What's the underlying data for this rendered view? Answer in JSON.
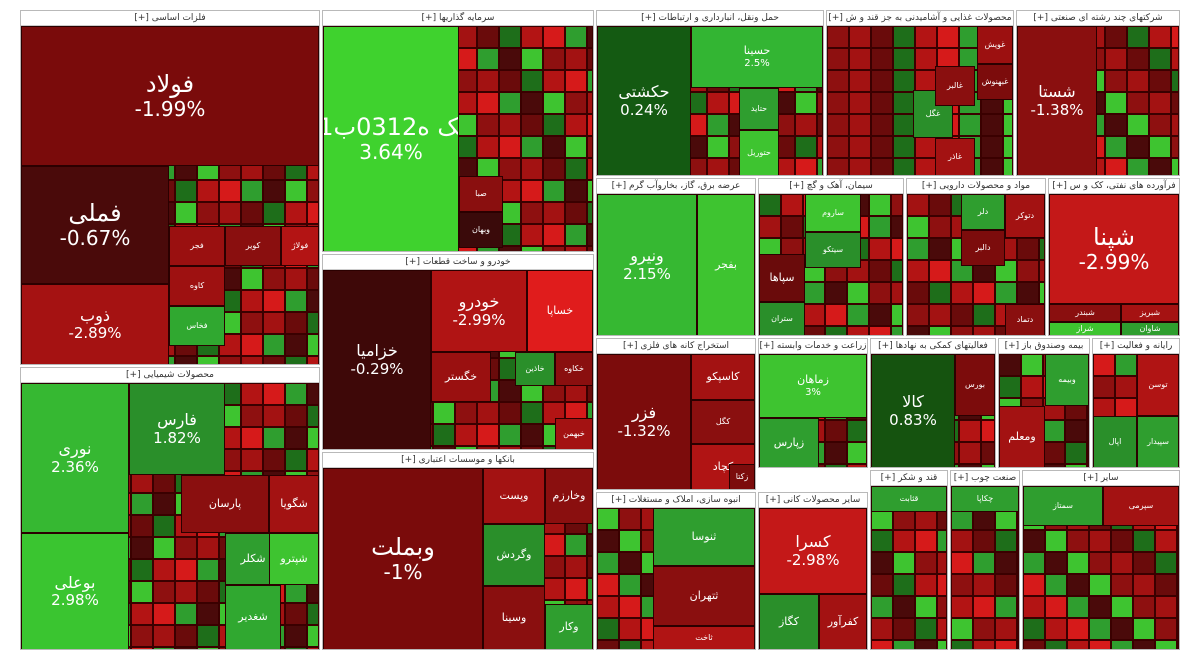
{
  "app": {
    "title": ""
  },
  "colors": {
    "dark_red": "#5a0d0d",
    "red": "#8e1010",
    "bright_red": "#d61a1a",
    "green": "#2e9e2e",
    "bright_green": "#3ed32e",
    "dark_green": "#15530f"
  },
  "chart_data": {
    "type": "treemap",
    "sectors": [
      {
        "name": "فلزات اساسی [+]",
        "tiles": [
          {
            "symbol": "فولاد",
            "change": "-1.99%",
            "color": "#7a0b0b"
          },
          {
            "symbol": "فملی",
            "change": "-0.67%",
            "color": "#4a0a0a"
          },
          {
            "symbol": "ذوب",
            "change": "-2.89%",
            "color": "#a51212"
          },
          {
            "symbol": "فولاژ",
            "change": "",
            "color": "#b31414"
          },
          {
            "symbol": "کاوه",
            "change": "",
            "color": "#9e1111"
          },
          {
            "symbol": "کویر",
            "change": "",
            "color": "#8a0f0f"
          },
          {
            "symbol": "فجر",
            "change": "",
            "color": "#9a1010"
          },
          {
            "symbol": "فخاس",
            "change": "",
            "color": "#30a830"
          }
        ]
      },
      {
        "name": "سرمایه گذاریها [+]",
        "tiles": [
          {
            "symbol": "سک ه0312ب01",
            "change": "3.64%",
            "color": "#3fd22e"
          },
          {
            "symbol": "صبا",
            "change": "",
            "color": "#8a0f0f"
          },
          {
            "symbol": "وبهان",
            "change": "",
            "color": "#3a0a0a"
          }
        ]
      },
      {
        "name": "حمل ونقل، انبارداری و ارتباطات [+]",
        "tiles": [
          {
            "symbol": "حکشتی",
            "change": "0.24%",
            "color": "#145a12"
          },
          {
            "symbol": "حسینا",
            "change": "2.5%",
            "color": "#33b533"
          },
          {
            "symbol": "حتاید",
            "change": "",
            "color": "#2f9e2f"
          },
          {
            "symbol": "حتوریل",
            "change": "",
            "color": "#3ec430"
          }
        ]
      },
      {
        "name": "محصولات غذایی و آشامیدنی به جز قند و ش [+]",
        "tiles": [
          {
            "symbol": "غویش",
            "change": "",
            "color": "#9c1010"
          },
          {
            "symbol": "غبهنوش",
            "change": "",
            "color": "#7c0c0c"
          },
          {
            "symbol": "غگل",
            "change": "",
            "color": "#2a8f2a"
          },
          {
            "symbol": "غالبر",
            "change": "",
            "color": "#8a0f0f"
          },
          {
            "symbol": "غاذر",
            "change": "",
            "color": "#a31212"
          }
        ]
      },
      {
        "name": "شرکتهای چند رشته ای صنعتی [+]",
        "tiles": [
          {
            "symbol": "شستا",
            "change": "-1.38%",
            "color": "#8a0f0f"
          }
        ]
      },
      {
        "name": "عرضه برق، گاز، بخاروآب گرم [+]",
        "tiles": [
          {
            "symbol": "ونیرو",
            "change": "2.15%",
            "color": "#36b832"
          },
          {
            "symbol": "بفجر",
            "change": "",
            "color": "#3ec430"
          }
        ]
      },
      {
        "name": "سیمان، آهک و گچ [+]",
        "tiles": [
          {
            "symbol": "ساروم",
            "change": "",
            "color": "#3ec430"
          },
          {
            "symbol": "سیتکو",
            "change": "",
            "color": "#2a8f2a"
          },
          {
            "symbol": "سپاها",
            "change": "",
            "color": "#6a0b0b"
          },
          {
            "symbol": "ستران",
            "change": "",
            "color": "#2a8f2a"
          }
        ]
      },
      {
        "name": "مواد و محصولات دارویی [+]",
        "tiles": [
          {
            "symbol": "دلر",
            "change": "",
            "color": "#2f9e2f"
          },
          {
            "symbol": "دتوکر",
            "change": "",
            "color": "#a31212"
          },
          {
            "symbol": "دالبر",
            "change": "",
            "color": "#7c0c0c"
          },
          {
            "symbol": "دتماد",
            "change": "",
            "color": "#8a0f0f"
          }
        ]
      },
      {
        "name": "فرآورده های نفتی، کک و س [+]",
        "tiles": [
          {
            "symbol": "شپنا",
            "change": "-2.99%",
            "color": "#c41818"
          },
          {
            "symbol": "شبریز",
            "change": "",
            "color": "#a51212"
          },
          {
            "symbol": "شبندر",
            "change": "",
            "color": "#8a0f0f"
          },
          {
            "symbol": "شاوان",
            "change": "",
            "color": "#2f9e2f"
          },
          {
            "symbol": "شراز",
            "change": "",
            "color": "#3ec430"
          }
        ]
      },
      {
        "name": "خودرو و ساخت قطعات [+]",
        "tiles": [
          {
            "symbol": "خزامیا",
            "change": "-0.29%",
            "color": "#3e0808"
          },
          {
            "symbol": "خودرو",
            "change": "-2.99%",
            "color": "#b01414"
          },
          {
            "symbol": "خساپا",
            "change": "",
            "color": "#e01c1c"
          },
          {
            "symbol": "خگستر",
            "change": "",
            "color": "#9a1010"
          },
          {
            "symbol": "خاذین",
            "change": "",
            "color": "#2a8f2a"
          },
          {
            "symbol": "خکاوه",
            "change": "",
            "color": "#8a0f0f"
          },
          {
            "symbol": "خبهمن",
            "change": "",
            "color": "#a31212"
          }
        ]
      },
      {
        "name": "استخراج کانه های فلزی [+]",
        "tiles": [
          {
            "symbol": "فزر",
            "change": "-1.32%",
            "color": "#7c0c0c"
          },
          {
            "symbol": "کاسپکو",
            "change": "",
            "color": "#a31212"
          },
          {
            "symbol": "کگل",
            "change": "",
            "color": "#8a0f0f"
          },
          {
            "symbol": "کچاد",
            "change": "",
            "color": "#b01414"
          },
          {
            "symbol": "زکتا",
            "change": "",
            "color": "#7c0c0c"
          }
        ]
      },
      {
        "name": "زراعت و خدمات وابسته [+]",
        "tiles": [
          {
            "symbol": "زماهان",
            "change": "3%",
            "color": "#3ec430"
          },
          {
            "symbol": "زپارس",
            "change": "",
            "color": "#2f9e2f"
          }
        ]
      },
      {
        "name": "فعالیتهای کمکی به نهادها [+]",
        "tiles": [
          {
            "symbol": "کالا",
            "change": "0.83%",
            "color": "#15530f"
          },
          {
            "symbol": "بورس",
            "change": "",
            "color": "#7c0c0c"
          }
        ]
      },
      {
        "name": "بیمه وصندوق باز [+]",
        "tiles": [
          {
            "symbol": "ومعلم",
            "change": "",
            "color": "#a31212"
          },
          {
            "symbol": "وبیمه",
            "change": "",
            "color": "#2f9e2f"
          }
        ]
      },
      {
        "name": "رایانه و فعالیت [+]",
        "tiles": [
          {
            "symbol": "توسن",
            "change": "",
            "color": "#b01414"
          },
          {
            "symbol": "سپیدار",
            "change": "",
            "color": "#2f9e2f"
          },
          {
            "symbol": "اپال",
            "change": "",
            "color": "#2a8f2a"
          }
        ]
      },
      {
        "name": "محصولات شیمیایی [+]",
        "tiles": [
          {
            "symbol": "نوری",
            "change": "2.36%",
            "color": "#36b832"
          },
          {
            "symbol": "بوعلی",
            "change": "2.98%",
            "color": "#3ac530"
          },
          {
            "symbol": "فارس",
            "change": "1.82%",
            "color": "#2a8f2a"
          },
          {
            "symbol": "پارسان",
            "change": "",
            "color": "#8a0f0f"
          },
          {
            "symbol": "شگویا",
            "change": "",
            "color": "#a31212"
          },
          {
            "symbol": "شکلر",
            "change": "",
            "color": "#2f9e2f"
          },
          {
            "symbol": "شپترو",
            "change": "",
            "color": "#3ec430"
          },
          {
            "symbol": "شغدیر",
            "change": "",
            "color": "#30a830"
          }
        ]
      },
      {
        "name": "بانکها و موسسات اعتباری [+]",
        "tiles": [
          {
            "symbol": "وبملت",
            "change": "-1%",
            "color": "#7a0b0b"
          },
          {
            "symbol": "وپست",
            "change": "",
            "color": "#a31212"
          },
          {
            "symbol": "وخارزم",
            "change": "",
            "color": "#8a0f0f"
          },
          {
            "symbol": "وکار",
            "change": "",
            "color": "#2f9e2f"
          },
          {
            "symbol": "وگردش",
            "change": "",
            "color": "#2a8f2a"
          },
          {
            "symbol": "وسینا",
            "change": "",
            "color": "#8a0f0f"
          }
        ]
      },
      {
        "name": "انبوه سازی، املاک و مستغلات [+]",
        "tiles": [
          {
            "symbol": "ثنوسا",
            "change": "",
            "color": "#2f9e2f"
          },
          {
            "symbol": "ثتهران",
            "change": "",
            "color": "#8a0f0f"
          },
          {
            "symbol": "ثاخت",
            "change": "",
            "color": "#b01414"
          }
        ]
      },
      {
        "name": "سایر محصولات کانی [+]",
        "tiles": [
          {
            "symbol": "کسرا",
            "change": "-2.98%",
            "color": "#c41818"
          },
          {
            "symbol": "کگاز",
            "change": "",
            "color": "#2a8f2a"
          },
          {
            "symbol": "کفرآور",
            "change": "",
            "color": "#a31212"
          }
        ]
      },
      {
        "name": "قند و شکر [+]",
        "tiles": [
          {
            "symbol": "قثابت",
            "change": "",
            "color": "#2f9e2f"
          }
        ]
      },
      {
        "name": "صنعت چوب [+]",
        "tiles": [
          {
            "symbol": "چکاپا",
            "change": "",
            "color": "#2f9e2f"
          }
        ]
      },
      {
        "name": "سایر [+]",
        "tiles": [
          {
            "symbol": "سمتاز",
            "change": "",
            "color": "#2f9e2f"
          },
          {
            "symbol": "سپرمی",
            "change": "",
            "color": "#a31212"
          }
        ]
      }
    ]
  }
}
